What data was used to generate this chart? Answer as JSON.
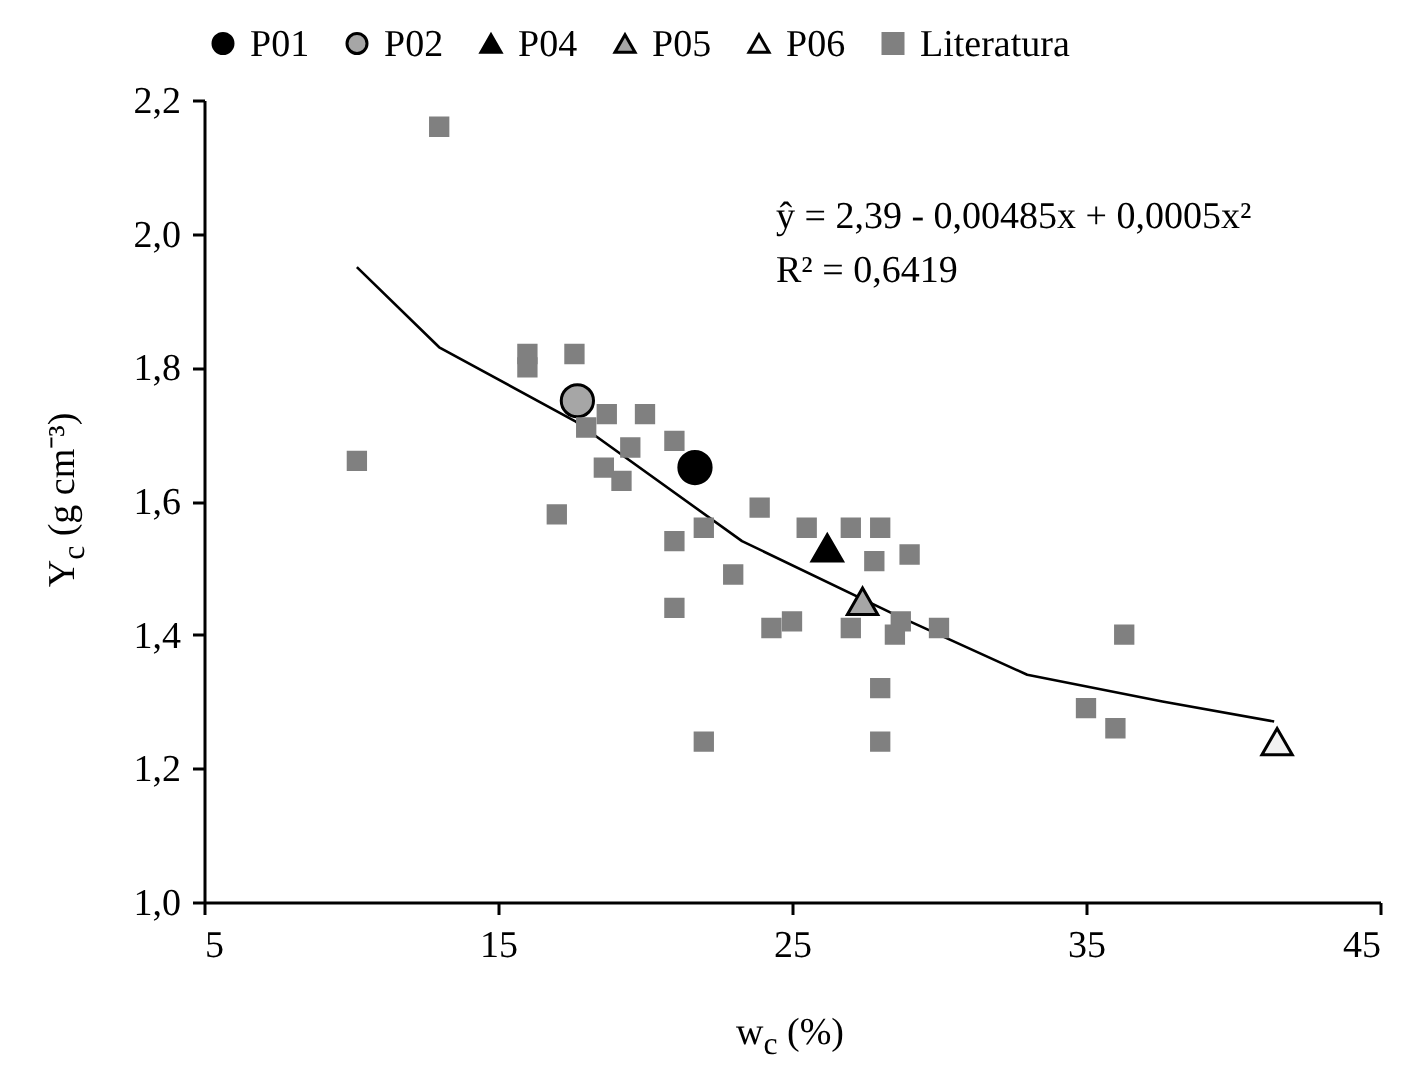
{
  "chart_data": {
    "type": "scatter",
    "xlabel": "w$_{c}$ (%)",
    "ylabel": "Υ$_{c}$ (g cm⁻³)",
    "xlim": [
      5,
      45
    ],
    "xticks": [
      5,
      15,
      25,
      35,
      45
    ],
    "ylim": [
      1.0,
      2.2
    ],
    "yticks": [
      {
        "value": 1.0,
        "label": "1,0"
      },
      {
        "value": 1.2,
        "label": "1,2"
      },
      {
        "value": 1.4,
        "label": "1,4"
      },
      {
        "value": 1.6,
        "label": "1,6"
      },
      {
        "value": 1.8,
        "label": "1,8"
      },
      {
        "value": 2.0,
        "label": "2,0"
      },
      {
        "value": 2.2,
        "label": "2,2"
      }
    ],
    "grid": false,
    "legend": "top",
    "annotations": [
      "ŷ = 2,39 - 0,00485x + 0,0005x²",
      "R² = 0,6419"
    ],
    "series": [
      {
        "name": "P01",
        "color": "#000000",
        "marker": "circle",
        "x": [
          21.7
        ],
        "values": [
          1.65
        ]
      },
      {
        "name": "P02",
        "color": "#a6a6a6",
        "marker": "circle",
        "x": [
          17.7
        ],
        "values": [
          1.75
        ]
      },
      {
        "name": "P04",
        "color": "#000000",
        "marker": "triangle",
        "x": [
          26.2
        ],
        "values": [
          1.53
        ]
      },
      {
        "name": "P05",
        "color": "#a6a6a6",
        "marker": "triangle",
        "x": [
          27.4
        ],
        "values": [
          1.45
        ]
      },
      {
        "name": "P06",
        "color": "#f2f2f2",
        "marker": "triangle",
        "x": [
          41.5
        ],
        "values": [
          1.24
        ]
      },
      {
        "name": "Literatura",
        "color": "#808080",
        "marker": "square",
        "x": [
          13.0,
          10.2,
          16.0,
          16.0,
          17.6,
          18.7,
          20.0,
          18.0,
          19.5,
          21.0,
          18.6,
          19.2,
          17.0,
          23.9,
          22.0,
          21.0,
          25.5,
          23.0,
          21.0,
          24.3,
          25.0,
          22.0,
          27.0,
          28.0,
          27.8,
          29.0,
          27.0,
          28.7,
          28.5,
          30.0,
          28.0,
          28.0,
          36.3,
          35.0,
          36.0
        ],
        "values": [
          2.16,
          1.66,
          1.82,
          1.8,
          1.82,
          1.73,
          1.73,
          1.71,
          1.68,
          1.69,
          1.65,
          1.63,
          1.58,
          1.59,
          1.56,
          1.54,
          1.56,
          1.49,
          1.44,
          1.41,
          1.42,
          1.24,
          1.56,
          1.56,
          1.51,
          1.52,
          1.41,
          1.42,
          1.4,
          1.41,
          1.32,
          1.24,
          1.4,
          1.29,
          1.26
        ]
      },
      {
        "type": "line",
        "color": "#000000",
        "x": [
          10.2,
          13.0,
          17.6,
          23.3,
          28.5,
          33.0,
          37.6,
          41.4
        ],
        "values": [
          1.95,
          1.83,
          1.72,
          1.54,
          1.43,
          1.34,
          1.3,
          1.27
        ]
      }
    ]
  }
}
